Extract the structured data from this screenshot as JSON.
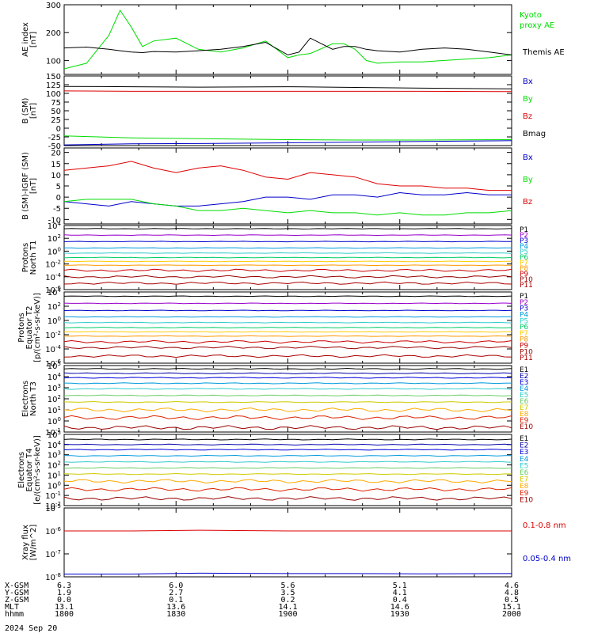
{
  "page": {
    "date": "2024 Sep 20",
    "ephemeris": {
      "labels": [
        "X-GSM",
        "Y-GSM",
        "Z-GSM",
        "MLT",
        "hhmm"
      ],
      "columns": [
        [
          "6.3",
          "1.9",
          "0.0",
          "13.1",
          "1800"
        ],
        [
          "6.0",
          "2.7",
          "0.1",
          "13.6",
          "1830"
        ],
        [
          "5.6",
          "3.5",
          "0.2",
          "14.1",
          "1900"
        ],
        [
          "5.1",
          "4.1",
          "0.4",
          "14.6",
          "1930"
        ],
        [
          "4.6",
          "4.8",
          "0.5",
          "15.1",
          "2000"
        ]
      ]
    }
  },
  "colors": {
    "black": "#000000",
    "green": "#00dd00",
    "red": "#dd0000",
    "blue": "#0000cc",
    "proton_palette": [
      "#000000",
      "#9900cc",
      "#0000cc",
      "#0099dd",
      "#33cccc",
      "#00cc66",
      "#ffcc00",
      "#ff9900",
      "#cc0000",
      "#990000",
      "#aa0000"
    ],
    "electron_palette": [
      "#000000",
      "#0000aa",
      "#0000dd",
      "#0099dd",
      "#33cccc",
      "#66cc66",
      "#cccc00",
      "#ffaa00",
      "#dd2200",
      "#990000"
    ]
  },
  "chart_data": [
    {
      "type": "line",
      "ylabel": "AE index [nT]",
      "ylim": [
        50,
        300
      ],
      "yticks": [
        100,
        200,
        300
      ],
      "xlim": [
        1800,
        2000
      ],
      "x": [
        1800,
        1810,
        1820,
        1825,
        1830,
        1835,
        1840,
        1850,
        1860,
        1870,
        1880,
        1890,
        1900,
        1905,
        1910,
        1920,
        1925,
        1930,
        1935,
        1940,
        1950,
        1960,
        1970,
        1980,
        1990,
        2000
      ],
      "series": [
        {
          "name": "Kyoto proxy AE",
          "color": "#00dd00",
          "values": [
            70,
            90,
            190,
            280,
            220,
            150,
            170,
            180,
            140,
            130,
            145,
            170,
            110,
            120,
            125,
            160,
            160,
            140,
            100,
            90,
            95,
            95,
            100,
            105,
            110,
            120
          ]
        },
        {
          "name": "Themis AE",
          "color": "#000000",
          "values": [
            145,
            148,
            140,
            135,
            130,
            128,
            132,
            130,
            135,
            140,
            150,
            165,
            120,
            130,
            180,
            140,
            150,
            150,
            140,
            135,
            130,
            140,
            145,
            140,
            130,
            120
          ]
        }
      ]
    },
    {
      "type": "line",
      "ylabel": "B (SM) [nT]",
      "ylim": [
        -50,
        150
      ],
      "yticks": [
        -50,
        -25,
        0,
        25,
        50,
        75,
        100,
        125,
        150
      ],
      "xlim": [
        1800,
        2000
      ],
      "x": [
        1800,
        1830,
        1860,
        1900,
        1930,
        1960,
        2000
      ],
      "series": [
        {
          "name": "Bx",
          "color": "#0000cc",
          "values": [
            -48,
            -45,
            -44,
            -42,
            -40,
            -38,
            -36
          ]
        },
        {
          "name": "By",
          "color": "#00dd00",
          "values": [
            -22,
            -28,
            -30,
            -33,
            -34,
            -34,
            -33
          ]
        },
        {
          "name": "Bz",
          "color": "#dd0000",
          "values": [
            107,
            106,
            106,
            106,
            106,
            106,
            105
          ]
        },
        {
          "name": "Bmag",
          "color": "#000000",
          "values": [
            120,
            119,
            118,
            119,
            117,
            115,
            113
          ]
        }
      ]
    },
    {
      "type": "line",
      "ylabel": "B (SM)-IGRF (SM) [nT]",
      "ylim": [
        -12,
        22
      ],
      "yticks": [
        -10,
        -5,
        0,
        5,
        10,
        15,
        20
      ],
      "xlim": [
        1800,
        2000
      ],
      "x": [
        1800,
        1810,
        1820,
        1830,
        1840,
        1850,
        1860,
        1870,
        1880,
        1890,
        1900,
        1910,
        1920,
        1930,
        1940,
        1950,
        1960,
        1970,
        1980,
        1990,
        2000
      ],
      "series": [
        {
          "name": "Bx",
          "color": "#0000cc",
          "values": [
            -2,
            -3,
            -4,
            -2,
            -3,
            -4,
            -4,
            -3,
            -2,
            0,
            0,
            -1,
            1,
            1,
            0,
            2,
            1,
            1,
            2,
            1,
            1
          ]
        },
        {
          "name": "By",
          "color": "#00dd00",
          "values": [
            -2,
            -1,
            -1,
            -1,
            -3,
            -4,
            -6,
            -6,
            -5,
            -6,
            -7,
            -6,
            -7,
            -7,
            -8,
            -7,
            -8,
            -8,
            -7,
            -7,
            -6
          ]
        },
        {
          "name": "Bz",
          "color": "#dd0000",
          "values": [
            12,
            13,
            14,
            16,
            13,
            11,
            13,
            14,
            12,
            9,
            8,
            11,
            10,
            9,
            6,
            5,
            5,
            4,
            4,
            3,
            3
          ]
        }
      ]
    },
    {
      "type": "line",
      "ylabel": "Protons North T1",
      "yscale": "log",
      "ylim_exp": [
        -6,
        4
      ],
      "ytick_labels": [
        "10^-6",
        "10^-4",
        "10^-2",
        "10^0",
        "10^2",
        "10^4"
      ],
      "xlim": [
        1800,
        2000
      ],
      "channels": [
        "P1",
        "P2",
        "P3",
        "P4",
        "P5",
        "P6",
        "P7",
        "P8",
        "P9",
        "P10",
        "P11"
      ],
      "channel_log_levels": [
        3.5,
        2.5,
        1.5,
        0.5,
        -0.3,
        -1.0,
        -1.6,
        -2.2,
        -3.0,
        -4.0,
        -5.0
      ]
    },
    {
      "type": "line",
      "ylabel": "Protons Equator T2 [p/(cm^2-s-sr-keV)]",
      "yscale": "log",
      "ylim_exp": [
        -6,
        4
      ],
      "ytick_labels": [
        "10^-6",
        "10^-4",
        "10^-2",
        "10^0",
        "10^2",
        "10^4"
      ],
      "xlim": [
        1800,
        2000
      ],
      "channels": [
        "P1",
        "P2",
        "P3",
        "P4",
        "P5",
        "P6",
        "P7",
        "P8",
        "P9",
        "P10",
        "P11"
      ],
      "channel_log_levels": [
        3.4,
        2.4,
        1.4,
        0.5,
        -0.3,
        -1.0,
        -1.6,
        -2.2,
        -3.0,
        -3.8,
        -5.0
      ]
    },
    {
      "type": "line",
      "ylabel": "Electrons North T3",
      "yscale": "log",
      "ylim_exp": [
        -1,
        5
      ],
      "ytick_labels": [
        "10^-1",
        "10^0",
        "10^1",
        "10^2",
        "10^3",
        "10^4",
        "10^5"
      ],
      "xlim": [
        1800,
        2000
      ],
      "channels": [
        "E1",
        "E2",
        "E3",
        "E4",
        "E5",
        "E6",
        "E7",
        "E8",
        "E9",
        "E10"
      ],
      "channel_log_levels": [
        4.7,
        4.3,
        3.9,
        3.4,
        2.9,
        2.3,
        1.7,
        1.0,
        0.3,
        -0.6
      ]
    },
    {
      "type": "line",
      "ylabel": "Electrons Equator T4 [e/(cm^2-s-sr-keV)]",
      "yscale": "log",
      "ylim_exp": [
        -2,
        5
      ],
      "ytick_labels": [
        "10^-2",
        "10^-1",
        "10^0",
        "10^1",
        "10^2",
        "10^3",
        "10^4",
        "10^5"
      ],
      "xlim": [
        1800,
        2000
      ],
      "channels": [
        "E1",
        "E2",
        "E3",
        "E4",
        "E5",
        "E6",
        "E7",
        "E8",
        "E9",
        "E10"
      ],
      "channel_log_levels": [
        4.5,
        4.0,
        3.5,
        2.9,
        2.3,
        1.7,
        1.1,
        0.4,
        -0.4,
        -1.3
      ]
    },
    {
      "type": "line",
      "ylabel": "Xray flux [W/m^2]",
      "yscale": "log",
      "ylim_exp": [
        -8,
        -5
      ],
      "ytick_labels": [
        "10^-8",
        "10^-7",
        "10^-6",
        "10^-5"
      ],
      "xlim": [
        1800,
        2000
      ],
      "x": [
        1800,
        1830,
        1860,
        1900,
        1930,
        1960,
        2000
      ],
      "series": [
        {
          "name": "0.1-0.8 nm",
          "color": "#dd0000",
          "log_values": [
            -6.0,
            -6.0,
            -5.97,
            -6.0,
            -6.0,
            -6.0,
            -6.0
          ]
        },
        {
          "name": "0.05-0.4 nm",
          "color": "#0000cc",
          "log_values": [
            -7.88,
            -7.88,
            -7.84,
            -7.86,
            -7.86,
            -7.87,
            -7.86
          ]
        }
      ]
    }
  ],
  "text": {
    "p0_ylabel_a": "AE index",
    "p0_ylabel_b": "[nT]",
    "p0_leg1": "Kyoto",
    "p0_leg2": "proxy AE",
    "p0_leg3": "Themis AE",
    "p1_ylabel_a": "B (SM)",
    "p1_ylabel_b": "[nT]",
    "p1_leg": [
      "Bx",
      "By",
      "Bz",
      "Bmag"
    ],
    "p2_ylabel_a": "B (SM)-IGRF (SM)",
    "p2_ylabel_b": "[nT]",
    "p2_leg": [
      "Bx",
      "By",
      "Bz"
    ],
    "p3_ylabel_a": "Protons",
    "p3_ylabel_b": "North T1",
    "p4_ylabel_a": "Protons",
    "p4_ylabel_b": "Equator T2",
    "p4_ylabel_c": "[p/(cm²-s-sr-keV)]",
    "p5_ylabel_a": "Electrons",
    "p5_ylabel_b": "North T3",
    "p6_ylabel_a": "Electrons",
    "p6_ylabel_b": "Equator T4",
    "p6_ylabel_c": "[e/(cm²-s-sr-keV)]",
    "p7_ylabel_a": "Xray flux",
    "p7_ylabel_b": "[W/m^2]",
    "p7_leg1": "0.1-0.8 nm",
    "p7_leg2": "0.05-0.4 nm"
  }
}
